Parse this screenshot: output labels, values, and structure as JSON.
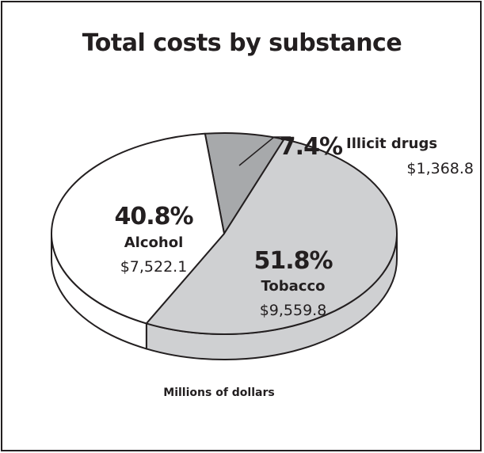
{
  "chart_data": {
    "type": "pie",
    "title": "Total costs by substance",
    "unit_note": "Millions of dollars",
    "slices": [
      {
        "name": "Illicit drugs",
        "percent": 7.4,
        "percent_label": "7.4%",
        "value": 1368.8,
        "value_label": "$1,368.8",
        "color": "#a7a9ab"
      },
      {
        "name": "Tobacco",
        "percent": 51.8,
        "percent_label": "51.8%",
        "value": 9559.8,
        "value_label": "$9,559.8",
        "color": "#cfd0d2"
      },
      {
        "name": "Alcohol",
        "percent": 40.8,
        "percent_label": "40.8%",
        "value": 7522.1,
        "value_label": "$7,522.1",
        "color": "#ffffff"
      }
    ]
  }
}
